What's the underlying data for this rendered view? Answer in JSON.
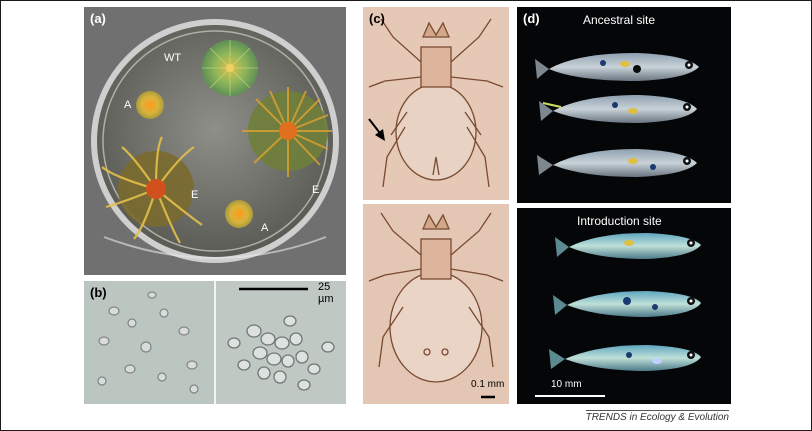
{
  "panel_a": {
    "label": "(a)",
    "colony_labels": [
      "WT",
      "A",
      "E",
      "E",
      "A"
    ]
  },
  "panel_b": {
    "label": "(b)",
    "scale_label": "25 µm"
  },
  "panel_c": {
    "label": "(c)",
    "scale_label": "0.1 mm"
  },
  "panel_d": {
    "label": "(d)",
    "top_title": "Ancestral site",
    "bottom_title": "Introduction site",
    "scale_label": "10 mm"
  },
  "credit": "TRENDS in Ecology & Evolution",
  "colors": {
    "petri_background": "#6e6e6e",
    "micrograph": "#bdc6c2",
    "mite_background": "#e4c6b4",
    "fish_background": "#050608"
  }
}
